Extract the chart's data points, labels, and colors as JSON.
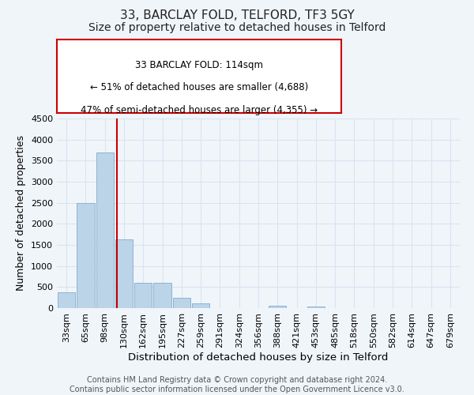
{
  "title1": "33, BARCLAY FOLD, TELFORD, TF3 5GY",
  "title2": "Size of property relative to detached houses in Telford",
  "xlabel": "Distribution of detached houses by size in Telford",
  "ylabel": "Number of detached properties",
  "categories": [
    "33sqm",
    "65sqm",
    "98sqm",
    "130sqm",
    "162sqm",
    "195sqm",
    "227sqm",
    "259sqm",
    "291sqm",
    "324sqm",
    "356sqm",
    "388sqm",
    "421sqm",
    "453sqm",
    "485sqm",
    "518sqm",
    "550sqm",
    "582sqm",
    "614sqm",
    "647sqm",
    "679sqm"
  ],
  "values": [
    370,
    2500,
    3700,
    1630,
    600,
    600,
    240,
    105,
    0,
    0,
    0,
    60,
    0,
    40,
    0,
    0,
    0,
    0,
    0,
    0,
    0
  ],
  "bar_color": "#bcd4e8",
  "bar_edge_color": "#8ab4d4",
  "ylim": [
    0,
    4500
  ],
  "yticks": [
    0,
    500,
    1000,
    1500,
    2000,
    2500,
    3000,
    3500,
    4000,
    4500
  ],
  "red_line_x": 2.62,
  "annotation_line1": "33 BARCLAY FOLD: 114sqm",
  "annotation_line2": "← 51% of detached houses are smaller (4,688)",
  "annotation_line3": "47% of semi-detached houses are larger (4,355) →",
  "annotation_box_color": "#ffffff",
  "annotation_border_color": "#cc0000",
  "footer": "Contains HM Land Registry data © Crown copyright and database right 2024.\nContains public sector information licensed under the Open Government Licence v3.0.",
  "background_color": "#f0f5fa",
  "grid_color": "#d8e4f0",
  "title1_fontsize": 11,
  "title2_fontsize": 10,
  "xlabel_fontsize": 9.5,
  "ylabel_fontsize": 9,
  "tick_fontsize": 8,
  "footer_fontsize": 7,
  "annot_fontsize": 8.5
}
